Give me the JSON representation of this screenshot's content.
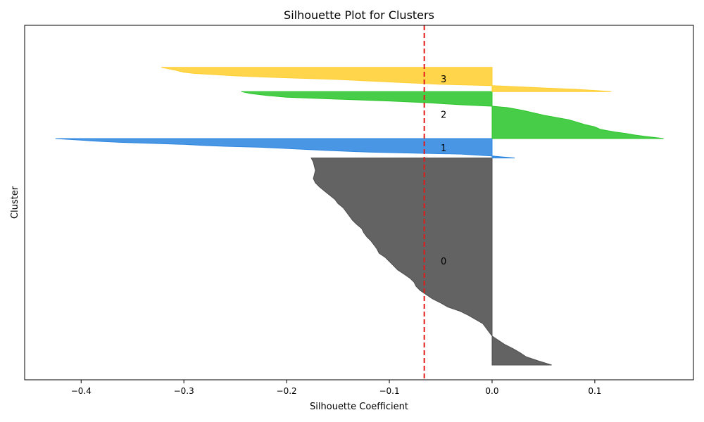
{
  "chart_data": {
    "type": "area",
    "title": "Silhouette Plot for Clusters",
    "xlabel": "Silhouette Coefficient",
    "ylabel": "Cluster",
    "xlim": [
      -0.455,
      0.196
    ],
    "x_ticks": [
      -0.4,
      -0.3,
      -0.2,
      -0.1,
      0.0,
      0.1
    ],
    "x_tick_labels": [
      "−0.4",
      "−0.3",
      "−0.2",
      "−0.1",
      "0.0",
      "0.1"
    ],
    "average_silhouette": -0.066,
    "grid": false,
    "clusters": [
      {
        "label": "0",
        "color": "#4d4d4d",
        "profile": [
          [
            0.0,
            0.058
          ],
          [
            0.02,
            0.045
          ],
          [
            0.04,
            0.033
          ],
          [
            0.06,
            0.027
          ],
          [
            0.08,
            0.02
          ],
          [
            0.1,
            0.012
          ],
          [
            0.12,
            0.006
          ],
          [
            0.14,
            0.0
          ],
          [
            0.16,
            -0.003
          ],
          [
            0.18,
            -0.006
          ],
          [
            0.2,
            -0.009
          ],
          [
            0.22,
            -0.016
          ],
          [
            0.24,
            -0.023
          ],
          [
            0.26,
            -0.031
          ],
          [
            0.28,
            -0.043
          ],
          [
            0.3,
            -0.05
          ],
          [
            0.32,
            -0.058
          ],
          [
            0.34,
            -0.064
          ],
          [
            0.36,
            -0.07
          ],
          [
            0.38,
            -0.074
          ],
          [
            0.4,
            -0.076
          ],
          [
            0.42,
            -0.08
          ],
          [
            0.44,
            -0.086
          ],
          [
            0.46,
            -0.092
          ],
          [
            0.48,
            -0.096
          ],
          [
            0.5,
            -0.1
          ],
          [
            0.52,
            -0.104
          ],
          [
            0.54,
            -0.11
          ],
          [
            0.56,
            -0.112
          ],
          [
            0.58,
            -0.115
          ],
          [
            0.6,
            -0.118
          ],
          [
            0.62,
            -0.122
          ],
          [
            0.64,
            -0.125
          ],
          [
            0.66,
            -0.127
          ],
          [
            0.68,
            -0.132
          ],
          [
            0.7,
            -0.136
          ],
          [
            0.72,
            -0.139
          ],
          [
            0.74,
            -0.142
          ],
          [
            0.76,
            -0.145
          ],
          [
            0.78,
            -0.15
          ],
          [
            0.8,
            -0.153
          ],
          [
            0.82,
            -0.158
          ],
          [
            0.84,
            -0.163
          ],
          [
            0.86,
            -0.168
          ],
          [
            0.88,
            -0.172
          ],
          [
            0.9,
            -0.174
          ],
          [
            0.94,
            -0.172
          ],
          [
            0.96,
            -0.173
          ],
          [
            0.98,
            -0.174
          ],
          [
            1.0,
            -0.176
          ]
        ]
      },
      {
        "label": "1",
        "color": "#2f87e0",
        "profile": [
          [
            0.0,
            0.022
          ],
          [
            0.03,
            0.015
          ],
          [
            0.06,
            0.008
          ],
          [
            0.1,
            0.0
          ],
          [
            0.15,
            -0.015
          ],
          [
            0.2,
            -0.03
          ],
          [
            0.25,
            -0.075
          ],
          [
            0.3,
            -0.12
          ],
          [
            0.4,
            -0.165
          ],
          [
            0.5,
            -0.205
          ],
          [
            0.55,
            -0.225
          ],
          [
            0.6,
            -0.26
          ],
          [
            0.65,
            -0.282
          ],
          [
            0.7,
            -0.3
          ],
          [
            0.75,
            -0.33
          ],
          [
            0.8,
            -0.36
          ],
          [
            0.85,
            -0.38
          ],
          [
            0.9,
            -0.395
          ],
          [
            0.95,
            -0.41
          ],
          [
            1.0,
            -0.425
          ]
        ]
      },
      {
        "label": "2",
        "color": "#2ec62e",
        "profile": [
          [
            0.0,
            0.167
          ],
          [
            0.02,
            0.16
          ],
          [
            0.05,
            0.148
          ],
          [
            0.08,
            0.138
          ],
          [
            0.11,
            0.13
          ],
          [
            0.14,
            0.12
          ],
          [
            0.17,
            0.112
          ],
          [
            0.2,
            0.105
          ],
          [
            0.25,
            0.1
          ],
          [
            0.3,
            0.09
          ],
          [
            0.4,
            0.075
          ],
          [
            0.5,
            0.05
          ],
          [
            0.6,
            0.03
          ],
          [
            0.66,
            0.015
          ],
          [
            0.69,
            0.0
          ],
          [
            0.72,
            -0.03
          ],
          [
            0.76,
            -0.06
          ],
          [
            0.8,
            -0.1
          ],
          [
            0.84,
            -0.15
          ],
          [
            0.88,
            -0.2
          ],
          [
            0.92,
            -0.22
          ],
          [
            0.96,
            -0.235
          ],
          [
            1.0,
            -0.244
          ]
        ]
      },
      {
        "label": "3",
        "color": "#ffcf33",
        "profile": [
          [
            0.0,
            0.116
          ],
          [
            0.05,
            0.1
          ],
          [
            0.1,
            0.08
          ],
          [
            0.15,
            0.05
          ],
          [
            0.2,
            0.025
          ],
          [
            0.25,
            0.0
          ],
          [
            0.3,
            -0.05
          ],
          [
            0.4,
            -0.1
          ],
          [
            0.5,
            -0.15
          ],
          [
            0.6,
            -0.22
          ],
          [
            0.65,
            -0.25
          ],
          [
            0.7,
            -0.27
          ],
          [
            0.75,
            -0.29
          ],
          [
            0.8,
            -0.3
          ],
          [
            0.9,
            -0.31
          ],
          [
            1.0,
            -0.322
          ]
        ]
      }
    ],
    "cluster_bounds": [
      [
        0.0,
        0.64
      ],
      [
        0.64,
        0.7
      ],
      [
        0.7,
        0.845
      ],
      [
        0.845,
        0.92
      ]
    ]
  }
}
